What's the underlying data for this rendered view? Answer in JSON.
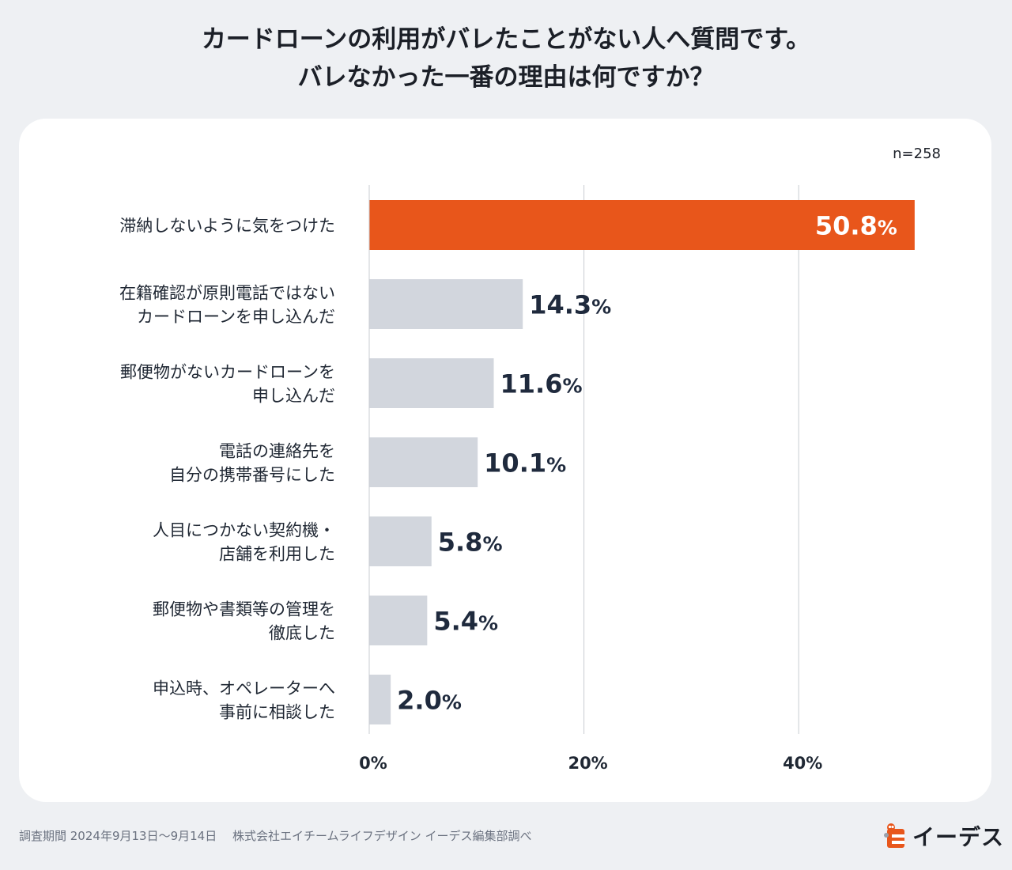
{
  "title": {
    "line1": "カードローンの利用がバレたことがない人へ質問です。",
    "line2": "バレなかった一番の理由は何ですか？"
  },
  "sample_size": "n=258",
  "footer": {
    "survey_note": "調査期間 2024年9月13日〜9月14日　 株式会社エイチームライフデザイン イーデス編集部調べ",
    "logo_text": "イーデス"
  },
  "colors": {
    "highlight": "#e8561b",
    "bar": "#d2d6dd",
    "grid": "#c9ccd1"
  },
  "chart_data": {
    "type": "bar",
    "orientation": "horizontal",
    "title": "カードローンの利用がバレたことがない人へ質問です。バレなかった一番の理由は何ですか？",
    "xlabel": "",
    "ylabel": "",
    "xlim": [
      0,
      52
    ],
    "xticks": [
      0,
      20,
      40
    ],
    "xtick_labels": [
      "0%",
      "20%",
      "40%"
    ],
    "unit": "%",
    "categories": [
      [
        "滞納しないように気をつけた"
      ],
      [
        "在籍確認が原則電話ではない",
        "カードローンを申し込んだ"
      ],
      [
        "郵便物がないカードローンを",
        "申し込んだ"
      ],
      [
        "電話の連絡先を",
        "自分の携帯番号にした"
      ],
      [
        "人目につかない契約機・",
        "店舗を利用した"
      ],
      [
        "郵便物や書類等の管理を",
        "徹底した"
      ],
      [
        "申込時、オペレーターへ",
        "事前に相談した"
      ]
    ],
    "values": [
      50.8,
      14.3,
      11.6,
      10.1,
      5.8,
      5.4,
      2.0
    ],
    "value_labels": [
      "50.8",
      "14.3",
      "11.6",
      "10.1",
      "5.8",
      "5.4",
      "2.0"
    ],
    "highlight_index": 0
  }
}
